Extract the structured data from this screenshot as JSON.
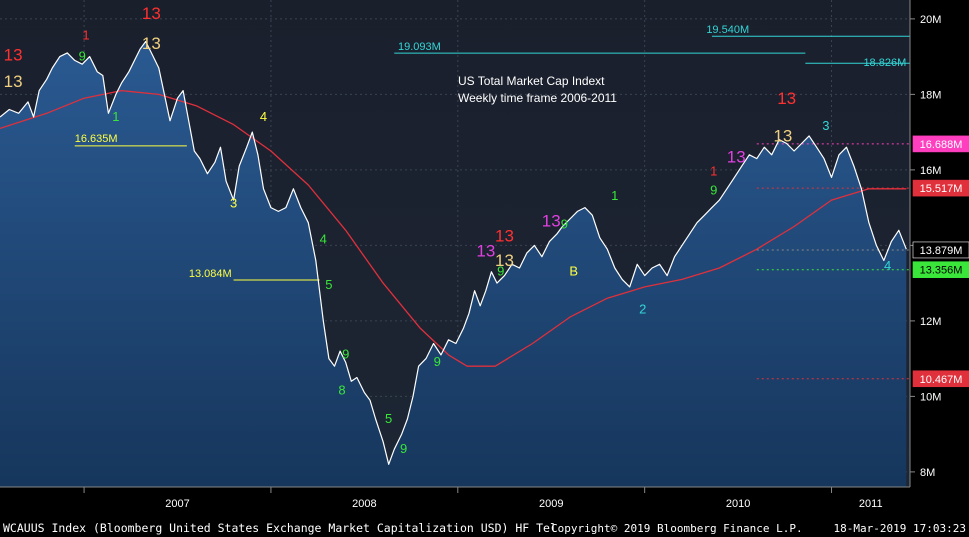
{
  "chart_data": {
    "type": "line",
    "title": "US Total Market Cap Indext",
    "subtitle": "Weekly time frame 2006-2011",
    "footer": {
      "security": "WCAUUS Index (Bloomberg United States Exchange Market Capitalization USD) HF Tel",
      "copyright": "Copyright© 2019 Bloomberg Finance L.P.",
      "timestamp": "18-Mar-2019 17:03:23"
    },
    "x_ticks": [
      {
        "label": "2007",
        "t": 2007.0
      },
      {
        "label": "2008",
        "t": 2008.0
      },
      {
        "label": "2009",
        "t": 2009.0
      },
      {
        "label": "2010",
        "t": 2010.0
      },
      {
        "label": "2011",
        "t": 2011.0
      }
    ],
    "xlim": [
      2006.55,
      2011.42
    ],
    "y_ticks": [
      {
        "label": "20M",
        "v": 20
      },
      {
        "label": "18M",
        "v": 18
      },
      {
        "label": "16M",
        "v": 16
      },
      {
        "label": "14M",
        "v": 14
      },
      {
        "label": "12M",
        "v": 12
      },
      {
        "label": "10M",
        "v": 10
      },
      {
        "label": "8M",
        "v": 8
      }
    ],
    "ylim": [
      7.6,
      20.5
    ],
    "series": [
      {
        "name": "",
        "color": "#ffffff",
        "points": [
          [
            2006.55,
            17.4
          ],
          [
            2006.6,
            17.6
          ],
          [
            2006.65,
            17.5
          ],
          [
            2006.7,
            17.8
          ],
          [
            2006.73,
            17.4
          ],
          [
            2006.76,
            18.1
          ],
          [
            2006.8,
            18.4
          ],
          [
            2006.83,
            18.7
          ],
          [
            2006.87,
            19.0
          ],
          [
            2006.91,
            19.1
          ],
          [
            2006.95,
            18.9
          ],
          [
            2006.99,
            18.8
          ],
          [
            2007.03,
            19.0
          ],
          [
            2007.07,
            18.6
          ],
          [
            2007.1,
            18.5
          ],
          [
            2007.13,
            17.5
          ],
          [
            2007.17,
            18.0
          ],
          [
            2007.2,
            18.3
          ],
          [
            2007.24,
            18.6
          ],
          [
            2007.27,
            18.9
          ],
          [
            2007.3,
            19.2
          ],
          [
            2007.33,
            19.4
          ],
          [
            2007.36,
            19.1
          ],
          [
            2007.4,
            18.7
          ],
          [
            2007.43,
            18.0
          ],
          [
            2007.46,
            17.3
          ],
          [
            2007.5,
            17.9
          ],
          [
            2007.53,
            18.1
          ],
          [
            2007.56,
            17.3
          ],
          [
            2007.59,
            16.5
          ],
          [
            2007.62,
            16.3
          ],
          [
            2007.66,
            15.9
          ],
          [
            2007.7,
            16.2
          ],
          [
            2007.73,
            16.6
          ],
          [
            2007.76,
            15.7
          ],
          [
            2007.8,
            15.2
          ],
          [
            2007.83,
            16.1
          ],
          [
            2007.87,
            16.6
          ],
          [
            2007.9,
            17.0
          ],
          [
            2007.93,
            16.4
          ],
          [
            2007.96,
            15.5
          ],
          [
            2008.0,
            15.0
          ],
          [
            2008.04,
            14.9
          ],
          [
            2008.08,
            15.0
          ],
          [
            2008.12,
            15.5
          ],
          [
            2008.16,
            15.0
          ],
          [
            2008.2,
            14.6
          ],
          [
            2008.24,
            13.6
          ],
          [
            2008.28,
            12.0
          ],
          [
            2008.31,
            11.0
          ],
          [
            2008.34,
            10.8
          ],
          [
            2008.37,
            11.2
          ],
          [
            2008.4,
            10.9
          ],
          [
            2008.43,
            10.4
          ],
          [
            2008.46,
            10.5
          ],
          [
            2008.5,
            10.1
          ],
          [
            2008.53,
            9.9
          ],
          [
            2008.56,
            9.4
          ],
          [
            2008.6,
            8.8
          ],
          [
            2008.63,
            8.2
          ],
          [
            2008.66,
            8.6
          ],
          [
            2008.7,
            9.0
          ],
          [
            2008.73,
            9.4
          ],
          [
            2008.76,
            10.0
          ],
          [
            2008.79,
            10.8
          ],
          [
            2008.83,
            11.0
          ],
          [
            2008.87,
            11.4
          ],
          [
            2008.91,
            11.1
          ],
          [
            2008.95,
            11.5
          ],
          [
            2008.99,
            11.4
          ],
          [
            2009.03,
            11.8
          ],
          [
            2009.06,
            12.2
          ],
          [
            2009.09,
            12.8
          ],
          [
            2009.12,
            12.4
          ],
          [
            2009.15,
            12.8
          ],
          [
            2009.18,
            13.3
          ],
          [
            2009.21,
            13.0
          ],
          [
            2009.25,
            13.2
          ],
          [
            2009.29,
            13.5
          ],
          [
            2009.33,
            13.4
          ],
          [
            2009.37,
            13.8
          ],
          [
            2009.41,
            14.0
          ],
          [
            2009.45,
            13.7
          ],
          [
            2009.49,
            14.1
          ],
          [
            2009.53,
            14.3
          ],
          [
            2009.56,
            14.5
          ],
          [
            2009.6,
            14.7
          ],
          [
            2009.64,
            14.9
          ],
          [
            2009.68,
            15.0
          ],
          [
            2009.72,
            14.8
          ],
          [
            2009.76,
            14.2
          ],
          [
            2009.8,
            13.9
          ],
          [
            2009.84,
            13.4
          ],
          [
            2009.88,
            13.1
          ],
          [
            2009.92,
            12.9
          ],
          [
            2009.96,
            13.5
          ],
          [
            2010.0,
            13.2
          ],
          [
            2010.04,
            13.4
          ],
          [
            2010.08,
            13.5
          ],
          [
            2010.12,
            13.2
          ],
          [
            2010.16,
            13.7
          ],
          [
            2010.2,
            14.0
          ],
          [
            2010.24,
            14.3
          ],
          [
            2010.28,
            14.6
          ],
          [
            2010.32,
            14.8
          ],
          [
            2010.36,
            15.0
          ],
          [
            2010.4,
            15.2
          ],
          [
            2010.44,
            15.5
          ],
          [
            2010.48,
            15.8
          ],
          [
            2010.52,
            16.1
          ],
          [
            2010.56,
            16.4
          ],
          [
            2010.6,
            16.3
          ],
          [
            2010.64,
            16.6
          ],
          [
            2010.68,
            16.4
          ],
          [
            2010.72,
            16.8
          ],
          [
            2010.76,
            16.7
          ],
          [
            2010.8,
            16.5
          ],
          [
            2010.84,
            16.7
          ],
          [
            2010.88,
            16.9
          ],
          [
            2010.92,
            16.6
          ],
          [
            2010.96,
            16.3
          ],
          [
            2011.0,
            15.8
          ],
          [
            2011.04,
            16.4
          ],
          [
            2011.08,
            16.6
          ],
          [
            2011.12,
            16.1
          ],
          [
            2011.16,
            15.5
          ],
          [
            2011.2,
            14.6
          ],
          [
            2011.24,
            14.0
          ],
          [
            2011.28,
            13.6
          ],
          [
            2011.32,
            14.1
          ],
          [
            2011.36,
            14.4
          ],
          [
            2011.4,
            13.9
          ]
        ]
      },
      {
        "name": "",
        "color": "#e0303c",
        "points": [
          [
            2006.55,
            17.1
          ],
          [
            2006.8,
            17.5
          ],
          [
            2007.0,
            17.9
          ],
          [
            2007.2,
            18.1
          ],
          [
            2007.4,
            18.0
          ],
          [
            2007.6,
            17.7
          ],
          [
            2007.8,
            17.2
          ],
          [
            2008.0,
            16.5
          ],
          [
            2008.2,
            15.6
          ],
          [
            2008.4,
            14.4
          ],
          [
            2008.6,
            13.0
          ],
          [
            2008.8,
            11.8
          ],
          [
            2008.95,
            11.1
          ],
          [
            2009.05,
            10.8
          ],
          [
            2009.2,
            10.8
          ],
          [
            2009.4,
            11.4
          ],
          [
            2009.6,
            12.1
          ],
          [
            2009.8,
            12.6
          ],
          [
            2010.0,
            12.9
          ],
          [
            2010.2,
            13.1
          ],
          [
            2010.4,
            13.4
          ],
          [
            2010.6,
            13.9
          ],
          [
            2010.8,
            14.5
          ],
          [
            2011.0,
            15.2
          ],
          [
            2011.2,
            15.5
          ],
          [
            2011.4,
            15.5
          ]
        ]
      }
    ],
    "price_labels": [
      {
        "text": "16.688M",
        "v": 16.688,
        "bg": "#ff3fbf",
        "fg": "#ffffff"
      },
      {
        "text": "15.517M",
        "v": 15.517,
        "bg": "#e0303c",
        "fg": "#ffffff"
      },
      {
        "text": "13.879M",
        "v": 13.879,
        "bg": "#000000",
        "fg": "#ffffff"
      },
      {
        "text": "13.356M",
        "v": 13.356,
        "bg": "#39e639",
        "fg": "#000000"
      },
      {
        "text": "10.467M",
        "v": 10.467,
        "bg": "#e0303c",
        "fg": "#ffffff"
      }
    ],
    "annotations": [
      {
        "text": "19.540M",
        "v": 19.54,
        "color": "#33d6d6"
      },
      {
        "text": "19.093M",
        "v": 19.093,
        "color": "#33d6d6"
      },
      {
        "text": "18.826M",
        "v": 18.826,
        "color": "#33d6d6"
      },
      {
        "text": "16.635M",
        "v": 16.635,
        "color": "#ffff40"
      },
      {
        "text": "13.084M",
        "v": 13.084,
        "color": "#ffff40"
      }
    ],
    "markers": [
      {
        "text": "13",
        "color": "#ff3030",
        "t": 2006.62,
        "v": 18.9
      },
      {
        "text": "13",
        "color": "#f0d080",
        "t": 2006.62,
        "v": 18.2
      },
      {
        "text": "1",
        "color": "#ff3030",
        "t": 2007.01,
        "v": 19.45
      },
      {
        "text": "9",
        "color": "#39e639",
        "t": 2006.99,
        "v": 18.9
      },
      {
        "text": "13",
        "color": "#ff3030",
        "t": 2007.36,
        "v": 20.0
      },
      {
        "text": "13",
        "color": "#f0d080",
        "t": 2007.36,
        "v": 19.2
      },
      {
        "text": "4",
        "color": "#ffff40",
        "t": 2007.96,
        "v": 17.3
      },
      {
        "text": "3",
        "color": "#ffff40",
        "t": 2007.8,
        "v": 15.0
      },
      {
        "text": "1",
        "color": "#39e639",
        "t": 2007.17,
        "v": 17.3
      },
      {
        "text": "4",
        "color": "#39e639",
        "t": 2008.28,
        "v": 14.05
      },
      {
        "text": "5",
        "color": "#39e639",
        "t": 2008.31,
        "v": 12.85
      },
      {
        "text": "9",
        "color": "#39e639",
        "t": 2008.4,
        "v": 11.0
      },
      {
        "text": "8",
        "color": "#39e639",
        "t": 2008.38,
        "v": 10.05
      },
      {
        "text": "5",
        "color": "#39e639",
        "t": 2008.63,
        "v": 9.3
      },
      {
        "text": "9",
        "color": "#39e639",
        "t": 2008.71,
        "v": 8.5
      },
      {
        "text": "9",
        "color": "#39e639",
        "t": 2008.89,
        "v": 10.8
      },
      {
        "text": "13",
        "color": "#ff3030",
        "t": 2009.25,
        "v": 14.1
      },
      {
        "text": "13",
        "color": "#e040e0",
        "t": 2009.15,
        "v": 13.7
      },
      {
        "text": "13",
        "color": "#f0d080",
        "t": 2009.25,
        "v": 13.45
      },
      {
        "text": "9",
        "color": "#39e639",
        "t": 2009.23,
        "v": 13.2
      },
      {
        "text": "13",
        "color": "#e040e0",
        "t": 2009.5,
        "v": 14.5
      },
      {
        "text": "9",
        "color": "#39e639",
        "t": 2009.57,
        "v": 14.45
      },
      {
        "text": "B",
        "color": "#ffff40",
        "t": 2009.62,
        "v": 13.2
      },
      {
        "text": "1",
        "color": "#39e639",
        "t": 2009.84,
        "v": 15.2
      },
      {
        "text": "2",
        "color": "#33d6d6",
        "t": 2009.99,
        "v": 12.2
      },
      {
        "text": "1",
        "color": "#ff3030",
        "t": 2010.37,
        "v": 15.85
      },
      {
        "text": "13",
        "color": "#e040e0",
        "t": 2010.49,
        "v": 16.2
      },
      {
        "text": "9",
        "color": "#39e639",
        "t": 2010.37,
        "v": 15.35
      },
      {
        "text": "13",
        "color": "#ff3030",
        "t": 2010.76,
        "v": 17.75
      },
      {
        "text": "13",
        "color": "#f0d080",
        "t": 2010.74,
        "v": 16.75
      },
      {
        "text": "3",
        "color": "#33d6d6",
        "t": 2010.97,
        "v": 17.05
      },
      {
        "text": "4",
        "color": "#33d6d6",
        "t": 2011.3,
        "v": 13.35
      }
    ]
  }
}
